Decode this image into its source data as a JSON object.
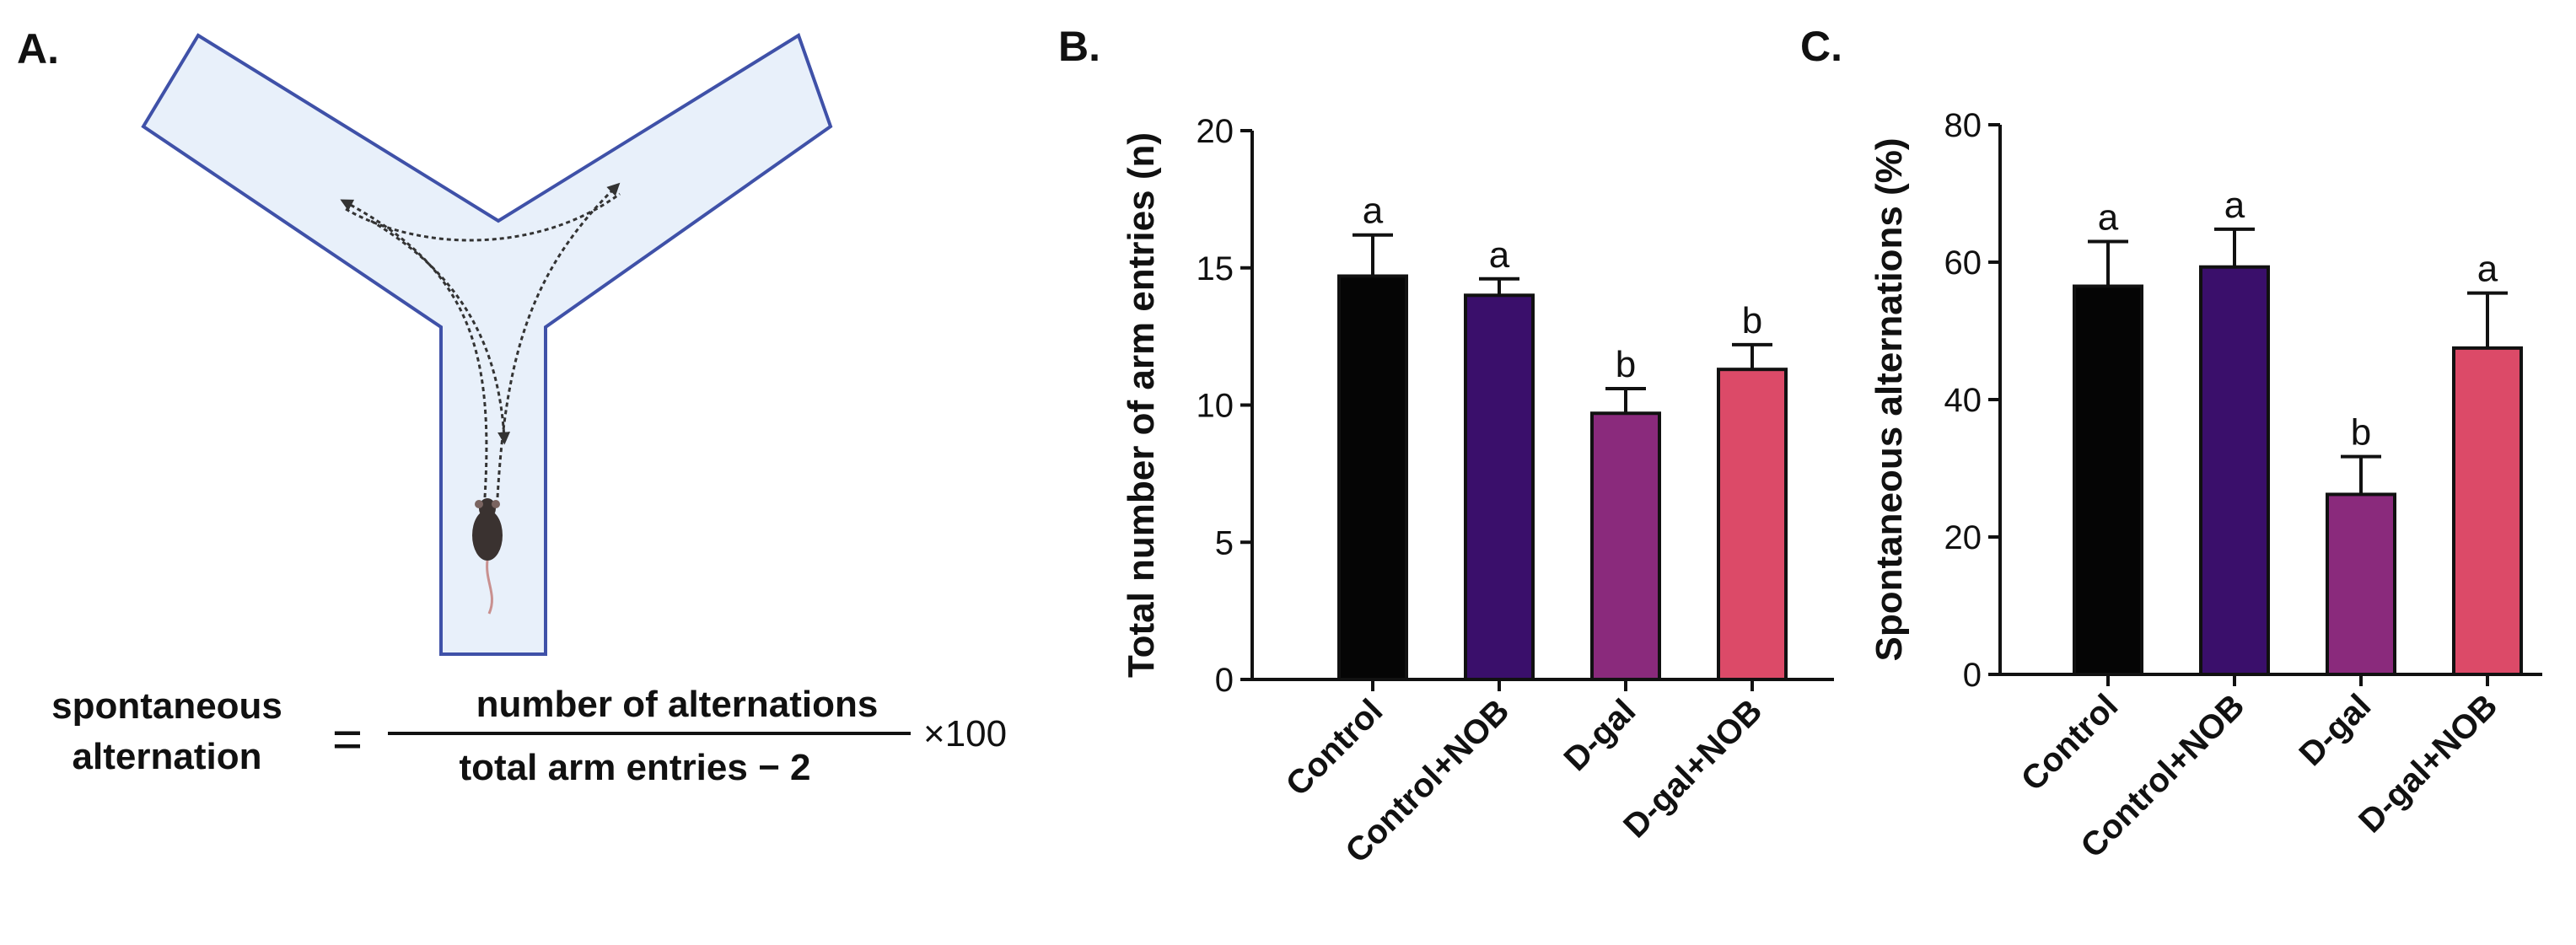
{
  "panels": {
    "a": "A.",
    "b": "B.",
    "c": "C."
  },
  "formula": {
    "lhs_line1": "spontaneous",
    "lhs_line2": "alternation",
    "equals": "=",
    "numerator": "number of alternations",
    "denominator": "total arm entries − 2",
    "multiplier": "×100"
  },
  "colors": {
    "maze_fill": "#e8f0fa",
    "maze_stroke": "#3f51a8",
    "control": "#050505",
    "control_nob": "#3a0f6b",
    "dgal": "#8a2a7c",
    "dgal_nob": "#dc4a68"
  },
  "chart_data": [
    {
      "type": "bar",
      "title": "",
      "xlabel": "",
      "ylabel": "Total number of arm entries (n)",
      "ylim": [
        0,
        20
      ],
      "yticks": [
        0,
        5,
        10,
        15,
        20
      ],
      "categories": [
        "Control",
        "Control+NOB",
        "D-gal",
        "D-gal+NOB"
      ],
      "values": [
        14.7,
        14.0,
        9.7,
        11.3
      ],
      "errors": [
        1.5,
        0.6,
        0.9,
        0.9
      ],
      "significance": [
        "a",
        "a",
        "b",
        "b"
      ],
      "colors": [
        "#050505",
        "#3a0f6b",
        "#8a2a7c",
        "#dc4a68"
      ],
      "grid": false
    },
    {
      "type": "bar",
      "title": "",
      "xlabel": "",
      "ylabel": "Spontaneous alternations (%)",
      "ylim": [
        0,
        80
      ],
      "yticks": [
        0,
        20,
        40,
        60,
        80
      ],
      "categories": [
        "Control",
        "Control+NOB",
        "D-gal",
        "D-gal+NOB"
      ],
      "values": [
        56.5,
        59.3,
        26.2,
        47.5
      ],
      "errors": [
        6.5,
        5.5,
        5.5,
        8.0
      ],
      "significance": [
        "a",
        "a",
        "b",
        "a"
      ],
      "colors": [
        "#050505",
        "#3a0f6b",
        "#8a2a7c",
        "#dc4a68"
      ],
      "grid": false
    }
  ]
}
